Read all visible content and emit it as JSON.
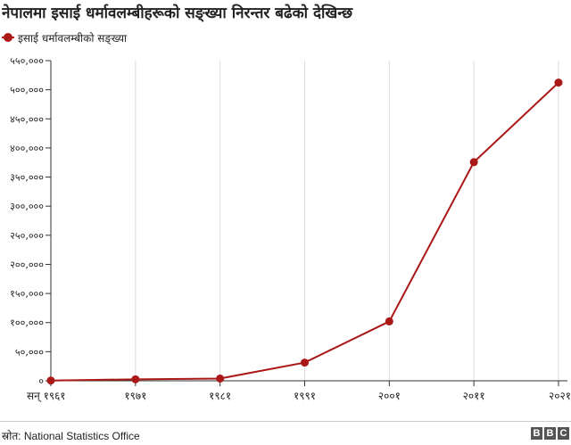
{
  "chart_data": {
    "type": "line",
    "title": "नेपालमा इसाई धर्मावलम्बीहरूको सङ्ख्या निरन्तर बढेको देखिन्छ",
    "x": [
      1961,
      1971,
      1981,
      1991,
      2001,
      2011,
      2021
    ],
    "x_tick_labels": [
      "सन् १९६१",
      "१९७१",
      "१९८१",
      "१९९१",
      "२००१",
      "२०११",
      "२०२१"
    ],
    "series": [
      {
        "name": "इसाई धर्मावलम्बीको सङ्ख्या",
        "values": [
          458,
          2541,
          3891,
          31280,
          101976,
          375699,
          512313
        ]
      }
    ],
    "ylim": [
      0,
      550000
    ],
    "y_ticks": [
      0,
      50000,
      100000,
      150000,
      200000,
      250000,
      300000,
      350000,
      400000,
      450000,
      500000,
      550000
    ],
    "y_tick_labels": [
      "०",
      "५०,०००",
      "१००,०००",
      "१५०,०००",
      "२००,०००",
      "२५०,०००",
      "३००,०००",
      "३५०,०००",
      "४००,०००",
      "४५०,०००",
      "५००,०००",
      "५५०,०००"
    ],
    "xlabel": "",
    "ylabel": "",
    "grid": true,
    "legend": "top-left",
    "colors": {
      "series": "#aa1818",
      "grid": "#dddddd",
      "axis": "#333333"
    }
  },
  "footer": {
    "source": "स्रोत: National Statistics Office",
    "logo": [
      "B",
      "B",
      "C"
    ]
  }
}
